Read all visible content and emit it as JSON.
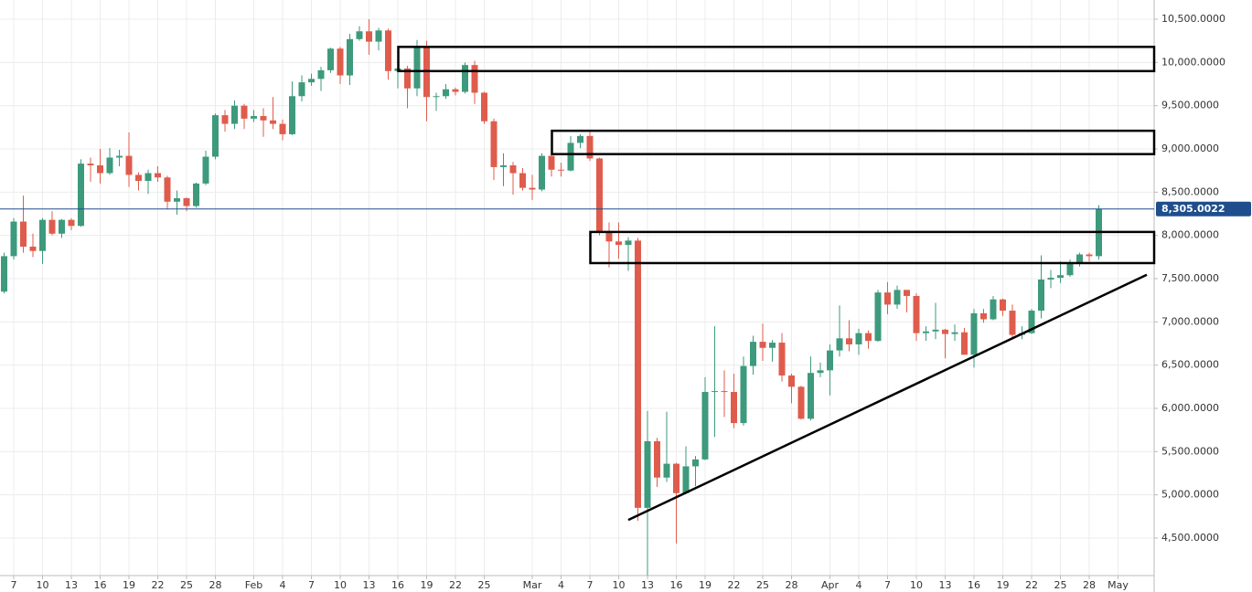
{
  "chart_data": {
    "type": "candlestick",
    "categories": [
      "Jan 6",
      "Jan 7",
      "Jan 8",
      "Jan 9",
      "Jan 10",
      "Jan 11",
      "Jan 12",
      "Jan 13",
      "Jan 14",
      "Jan 15",
      "Jan 16",
      "Jan 17",
      "Jan 18",
      "Jan 19",
      "Jan 20",
      "Jan 21",
      "Jan 22",
      "Jan 23",
      "Jan 24",
      "Jan 25",
      "Jan 26",
      "Jan 27",
      "Jan 28",
      "Jan 29",
      "Jan 30",
      "Jan 31",
      "Feb 1",
      "Feb 2",
      "Feb 3",
      "Feb 4",
      "Feb 5",
      "Feb 6",
      "Feb 7",
      "Feb 8",
      "Feb 9",
      "Feb 10",
      "Feb 11",
      "Feb 12",
      "Feb 13",
      "Feb 14",
      "Feb 15",
      "Feb 16",
      "Feb 17",
      "Feb 18",
      "Feb 19",
      "Feb 20",
      "Feb 21",
      "Feb 22",
      "Feb 23",
      "Feb 24",
      "Feb 25",
      "Feb 26",
      "Feb 27",
      "Feb 28",
      "Feb 29",
      "Mar 1",
      "Mar 2",
      "Mar 3",
      "Mar 4",
      "Mar 5",
      "Mar 6",
      "Mar 7",
      "Mar 8",
      "Mar 9",
      "Mar 10",
      "Mar 11",
      "Mar 12",
      "Mar 13",
      "Mar 14",
      "Mar 15",
      "Mar 16",
      "Mar 17",
      "Mar 18",
      "Mar 19",
      "Mar 20",
      "Mar 21",
      "Mar 22",
      "Mar 23",
      "Mar 24",
      "Mar 25",
      "Mar 26",
      "Mar 27",
      "Mar 28",
      "Mar 29",
      "Mar 30",
      "Mar 31",
      "Apr 1",
      "Apr 2",
      "Apr 3",
      "Apr 4",
      "Apr 5",
      "Apr 6",
      "Apr 7",
      "Apr 8",
      "Apr 9",
      "Apr 10",
      "Apr 11",
      "Apr 12",
      "Apr 13",
      "Apr 14",
      "Apr 15",
      "Apr 16",
      "Apr 17",
      "Apr 18",
      "Apr 19",
      "Apr 20",
      "Apr 21",
      "Apr 22",
      "Apr 23",
      "Apr 24",
      "Apr 25",
      "Apr 26",
      "Apr 27",
      "Apr 28",
      "Apr 29",
      "Apr 30",
      "May 1",
      "May 2",
      "May 3",
      "May 4"
    ],
    "open": [
      7350,
      7760,
      8160,
      7870,
      7820,
      8180,
      8020,
      8180,
      8110,
      8830,
      8810,
      8720,
      8900,
      8920,
      8700,
      8630,
      8720,
      8670,
      8390,
      8430,
      8340,
      8600,
      8910,
      9390,
      9290,
      9500,
      9350,
      9380,
      9330,
      9290,
      9170,
      9610,
      9770,
      9810,
      9910,
      10160,
      9850,
      10270,
      10360,
      10240,
      10370,
      9900,
      9930,
      9700,
      10180,
      9600,
      9610,
      9690,
      9660,
      9970,
      9650,
      9320,
      8790,
      8810,
      8720,
      8550,
      8530,
      8920,
      8760,
      8750,
      9070,
      9150,
      8890,
      8030,
      7930,
      7890,
      7940,
      4850,
      5620,
      5200,
      5360,
      5020,
      5330,
      5410,
      6190,
      6200,
      6190,
      5830,
      6490,
      6770,
      6700,
      6760,
      6380,
      6250,
      5880,
      6410,
      6440,
      6670,
      6810,
      6740,
      6870,
      6780,
      7340,
      7200,
      7370,
      7300,
      6870,
      6890,
      6910,
      6860,
      6880,
      6620,
      7100,
      7030,
      7260,
      7130,
      6850,
      6870,
      7130,
      7490,
      7510,
      7540,
      7690,
      7780,
      7760,
      null,
      null,
      null,
      null,
      null
    ],
    "high": [
      7800,
      8200,
      8460,
      8020,
      8200,
      8280,
      8190,
      8200,
      8880,
      8900,
      9000,
      9010,
      8990,
      9190,
      8730,
      8760,
      8800,
      8690,
      8520,
      8440,
      8610,
      8980,
      9410,
      9450,
      9560,
      9520,
      9450,
      9470,
      9600,
      9340,
      9780,
      9850,
      9870,
      9950,
      10170,
      10180,
      10330,
      10420,
      10500,
      10400,
      10390,
      10080,
      9960,
      10260,
      10250,
      9650,
      9750,
      9710,
      10000,
      10020,
      9660,
      9350,
      8950,
      8850,
      8780,
      8700,
      8950,
      8940,
      8840,
      9150,
      9170,
      9200,
      8900,
      8150,
      8150,
      7980,
      7970,
      5970,
      5660,
      5960,
      5370,
      5560,
      5450,
      6360,
      6950,
      6440,
      6400,
      6600,
      6840,
      6980,
      6790,
      6870,
      6400,
      6260,
      6600,
      6530,
      6740,
      7190,
      7020,
      6920,
      6900,
      7370,
      7460,
      7420,
      7370,
      7330,
      6950,
      7220,
      6920,
      6970,
      6930,
      7150,
      7150,
      7300,
      7270,
      7200,
      6950,
      7150,
      7770,
      7600,
      7700,
      7720,
      7800,
      7800,
      8350,
      null,
      null,
      null,
      null,
      null
    ],
    "low": [
      7330,
      7720,
      7800,
      7750,
      7670,
      8000,
      7970,
      8060,
      8100,
      8620,
      8600,
      8700,
      8800,
      8560,
      8520,
      8480,
      8620,
      8300,
      8240,
      8280,
      8320,
      8580,
      8880,
      9200,
      9230,
      9230,
      9310,
      9140,
      9230,
      9100,
      9160,
      9550,
      9730,
      9670,
      9880,
      9750,
      9740,
      10250,
      10090,
      10140,
      9800,
      9700,
      9470,
      9610,
      9320,
      9440,
      9580,
      9620,
      9640,
      9520,
      9290,
      8640,
      8570,
      8470,
      8520,
      8410,
      8510,
      8680,
      8680,
      8740,
      9010,
      8860,
      8000,
      7630,
      7730,
      7590,
      4700,
      4070,
      5090,
      5150,
      4440,
      5010,
      5100,
      5400,
      5670,
      5900,
      5770,
      5800,
      6390,
      6550,
      6540,
      6310,
      6060,
      5870,
      5860,
      6360,
      6150,
      6600,
      6660,
      6620,
      6690,
      6770,
      7090,
      7150,
      7110,
      6780,
      6780,
      6800,
      6580,
      6780,
      6620,
      6470,
      6990,
      7020,
      7070,
      6800,
      6800,
      6860,
      7040,
      7390,
      7450,
      7520,
      7640,
      7700,
      7720,
      null,
      null,
      null,
      null,
      null
    ],
    "close": [
      7760,
      8160,
      7870,
      7820,
      8180,
      8020,
      8180,
      8110,
      8830,
      8810,
      8720,
      8900,
      8920,
      8700,
      8630,
      8720,
      8670,
      8390,
      8430,
      8340,
      8600,
      8910,
      9390,
      9290,
      9500,
      9350,
      9380,
      9330,
      9290,
      9170,
      9610,
      9770,
      9810,
      9910,
      10160,
      9850,
      10270,
      10360,
      10240,
      10370,
      9900,
      9930,
      9700,
      10180,
      9600,
      9610,
      9690,
      9660,
      9970,
      9650,
      9320,
      8790,
      8810,
      8720,
      8550,
      8530,
      8920,
      8760,
      8750,
      9070,
      9150,
      8890,
      8030,
      7930,
      7890,
      7940,
      4850,
      5620,
      5200,
      5360,
      5020,
      5330,
      5410,
      6190,
      6200,
      6190,
      5830,
      6490,
      6770,
      6700,
      6760,
      6380,
      6250,
      5880,
      6410,
      6440,
      6670,
      6810,
      6740,
      6870,
      6780,
      7340,
      7200,
      7370,
      7300,
      6870,
      6890,
      6910,
      6860,
      6880,
      6620,
      7100,
      7030,
      7260,
      7130,
      6850,
      6870,
      7130,
      7490,
      7510,
      7540,
      7690,
      7780,
      7760,
      8305,
      null,
      null,
      null,
      null,
      null
    ],
    "up_color": "#3d9a7c",
    "down_color": "#df5c4c",
    "ylim": [
      4067,
      10722
    ],
    "yticks": [
      {
        "value": 4500,
        "label": "4,500.0000"
      },
      {
        "value": 5000,
        "label": "5,000.0000"
      },
      {
        "value": 5500,
        "label": "5,500.0000"
      },
      {
        "value": 6000,
        "label": "6,000.0000"
      },
      {
        "value": 6500,
        "label": "6,500.0000"
      },
      {
        "value": 7000,
        "label": "7,000.0000"
      },
      {
        "value": 7500,
        "label": "7,500.0000"
      },
      {
        "value": 8000,
        "label": "8,000.0000"
      },
      {
        "value": 8500,
        "label": "8,500.0000"
      },
      {
        "value": 9000,
        "label": "9,000.0000"
      },
      {
        "value": 9500,
        "label": "9,500.0000"
      },
      {
        "value": 10000,
        "label": "10,000.0000"
      },
      {
        "value": 10500,
        "label": "10,500.0000"
      }
    ],
    "xticks": [
      {
        "value": "Jan 7",
        "label": "7"
      },
      {
        "value": "Jan 10",
        "label": "10"
      },
      {
        "value": "Jan 13",
        "label": "13"
      },
      {
        "value": "Jan 16",
        "label": "16"
      },
      {
        "value": "Jan 19",
        "label": "19"
      },
      {
        "value": "Jan 22",
        "label": "22"
      },
      {
        "value": "Jan 25",
        "label": "25"
      },
      {
        "value": "Jan 28",
        "label": "28"
      },
      {
        "value": "Feb 1",
        "label": "Feb"
      },
      {
        "value": "Feb 4",
        "label": "4"
      },
      {
        "value": "Feb 7",
        "label": "7"
      },
      {
        "value": "Feb 10",
        "label": "10"
      },
      {
        "value": "Feb 13",
        "label": "13"
      },
      {
        "value": "Feb 16",
        "label": "16"
      },
      {
        "value": "Feb 19",
        "label": "19"
      },
      {
        "value": "Feb 22",
        "label": "22"
      },
      {
        "value": "Feb 25",
        "label": "25"
      },
      {
        "value": "Mar 1",
        "label": "Mar"
      },
      {
        "value": "Mar 4",
        "label": "4"
      },
      {
        "value": "Mar 7",
        "label": "7"
      },
      {
        "value": "Mar 10",
        "label": "10"
      },
      {
        "value": "Mar 13",
        "label": "13"
      },
      {
        "value": "Mar 16",
        "label": "16"
      },
      {
        "value": "Mar 19",
        "label": "19"
      },
      {
        "value": "Mar 22",
        "label": "22"
      },
      {
        "value": "Mar 25",
        "label": "25"
      },
      {
        "value": "Mar 28",
        "label": "28"
      },
      {
        "value": "Apr 1",
        "label": "Apr"
      },
      {
        "value": "Apr 4",
        "label": "4"
      },
      {
        "value": "Apr 7",
        "label": "7"
      },
      {
        "value": "Apr 10",
        "label": "10"
      },
      {
        "value": "Apr 13",
        "label": "13"
      },
      {
        "value": "Apr 16",
        "label": "16"
      },
      {
        "value": "Apr 19",
        "label": "19"
      },
      {
        "value": "Apr 22",
        "label": "22"
      },
      {
        "value": "Apr 25",
        "label": "25"
      },
      {
        "value": "Apr 28",
        "label": "28"
      },
      {
        "value": "May 1",
        "label": "May"
      }
    ],
    "grid": true,
    "last_price": 8305.0022,
    "last_price_label": "8,305.0022",
    "last_price_color": "#1f4e8c",
    "zones": [
      {
        "start": "Feb 17",
        "low": 9900,
        "high": 10180
      },
      {
        "start": "Mar 4",
        "low": 8940,
        "high": 9210
      },
      {
        "start": "Mar 8",
        "low": 7680,
        "high": 8040
      }
    ],
    "trendline": {
      "start": "Mar 11",
      "start_value": 4710,
      "end": "May 4",
      "end_value": 7545
    }
  }
}
